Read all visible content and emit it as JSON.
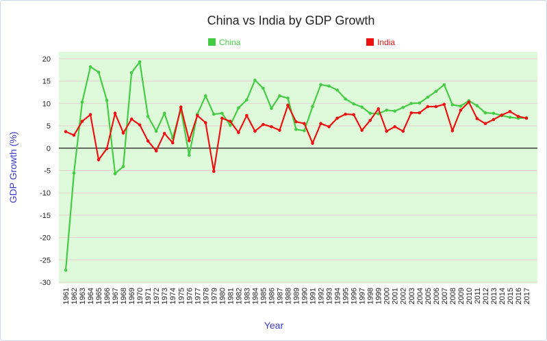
{
  "chart_data": {
    "type": "line",
    "title": "China vs India by GDP Growth",
    "xlabel": "Year",
    "ylabel": "GDP Growth (%)",
    "ylim": [
      -30,
      20
    ],
    "yticks": [
      20,
      15,
      10,
      5,
      0,
      -5,
      -10,
      -15,
      -20,
      -25,
      -30
    ],
    "legend_position": "top",
    "grid": true,
    "x": [
      1961,
      1962,
      1963,
      1964,
      1965,
      1966,
      1967,
      1968,
      1969,
      1970,
      1971,
      1972,
      1973,
      1974,
      1975,
      1976,
      1977,
      1978,
      1979,
      1980,
      1981,
      1982,
      1983,
      1984,
      1985,
      1986,
      1987,
      1988,
      1989,
      1990,
      1991,
      1992,
      1993,
      1994,
      1995,
      1996,
      1997,
      1998,
      1999,
      2000,
      2001,
      2002,
      2003,
      2004,
      2005,
      2006,
      2007,
      2008,
      2009,
      2010,
      2011,
      2012,
      2013,
      2014,
      2015,
      2016,
      2017
    ],
    "series": [
      {
        "name": "China",
        "color": "#44cc44",
        "values": [
          -27.3,
          -5.6,
          10.3,
          18.2,
          17.0,
          10.7,
          -5.7,
          -4.1,
          16.9,
          19.3,
          7.1,
          3.8,
          7.8,
          2.3,
          8.7,
          -1.6,
          7.6,
          11.7,
          7.6,
          7.8,
          5.1,
          9.0,
          10.8,
          15.2,
          13.4,
          8.9,
          11.7,
          11.2,
          4.2,
          3.9,
          9.3,
          14.2,
          13.9,
          13.0,
          11.0,
          9.9,
          9.2,
          7.8,
          7.7,
          8.5,
          8.3,
          9.1,
          10.0,
          10.1,
          11.4,
          12.7,
          14.2,
          9.7,
          9.4,
          10.6,
          9.5,
          7.9,
          7.8,
          7.3,
          6.9,
          6.7,
          6.8
        ]
      },
      {
        "name": "India",
        "color": "#ee1111",
        "values": [
          3.7,
          2.9,
          6.0,
          7.5,
          -2.6,
          -0.1,
          7.8,
          3.4,
          6.5,
          5.2,
          1.6,
          -0.6,
          3.3,
          1.2,
          9.2,
          1.7,
          7.3,
          5.7,
          -5.2,
          6.7,
          6.0,
          3.5,
          7.3,
          3.8,
          5.3,
          4.8,
          4.0,
          9.6,
          5.9,
          5.5,
          1.1,
          5.5,
          4.8,
          6.7,
          7.6,
          7.5,
          4.0,
          6.2,
          8.8,
          3.8,
          4.8,
          3.8,
          7.9,
          7.9,
          9.3,
          9.3,
          9.8,
          3.9,
          8.5,
          10.3,
          6.6,
          5.5,
          6.4,
          7.4,
          8.2,
          7.1,
          6.7
        ]
      }
    ]
  }
}
